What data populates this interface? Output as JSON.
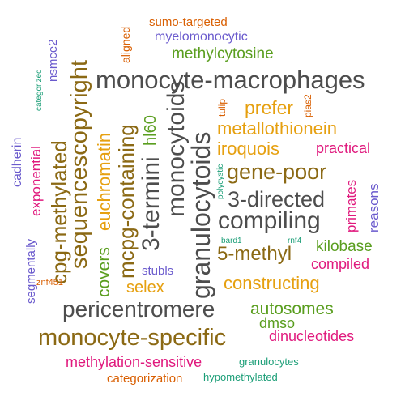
{
  "cloud": {
    "words": [
      {
        "text": "monocyte-macrophages",
        "color": "#4d4d4d"
      },
      {
        "text": "pericentromere",
        "color": "#4d4d4d"
      },
      {
        "text": "compiling",
        "color": "#4d4d4d"
      },
      {
        "text": "3-directed",
        "color": "#4d4d4d"
      },
      {
        "text": "granulocytoids",
        "color": "#4d4d4d"
      },
      {
        "text": "monocytoids",
        "color": "#4d4d4d"
      },
      {
        "text": "3-termini",
        "color": "#4d4d4d"
      },
      {
        "text": "monocyte-specific",
        "color": "#8b6914"
      },
      {
        "text": "gene-poor",
        "color": "#8b6914"
      },
      {
        "text": "5-methyl",
        "color": "#8b6914"
      },
      {
        "text": "sequencescopyright",
        "color": "#8b6914"
      },
      {
        "text": "cpg-methylated",
        "color": "#8b6914"
      },
      {
        "text": "mcpg-containing",
        "color": "#8b6914"
      },
      {
        "text": "constructing",
        "color": "#e6a010"
      },
      {
        "text": "iroquois",
        "color": "#e6a010"
      },
      {
        "text": "metallothionein",
        "color": "#e6a010"
      },
      {
        "text": "prefer",
        "color": "#e6a010"
      },
      {
        "text": "selex",
        "color": "#e6a010"
      },
      {
        "text": "euchromatin",
        "color": "#e6a010"
      },
      {
        "text": "autosomes",
        "color": "#5a9e1f"
      },
      {
        "text": "methylcytosine",
        "color": "#5a9e1f"
      },
      {
        "text": "kilobase",
        "color": "#5a9e1f"
      },
      {
        "text": "covers",
        "color": "#5a9e1f"
      },
      {
        "text": "hl60",
        "color": "#5a9e1f"
      },
      {
        "text": "dmso",
        "color": "#5a9e1f"
      },
      {
        "text": "methylation-sensitive",
        "color": "#e0197d"
      },
      {
        "text": "dinucleotides",
        "color": "#e0197d"
      },
      {
        "text": "compiled",
        "color": "#e0197d"
      },
      {
        "text": "practical",
        "color": "#e0197d"
      },
      {
        "text": "primates",
        "color": "#e0197d"
      },
      {
        "text": "exponential",
        "color": "#e0197d"
      },
      {
        "text": "myelomonocytic",
        "color": "#6a5acd"
      },
      {
        "text": "stubls",
        "color": "#6a5acd"
      },
      {
        "text": "reasons",
        "color": "#6a5acd"
      },
      {
        "text": "nsmce2",
        "color": "#6a5acd"
      },
      {
        "text": "cadherin",
        "color": "#6a5acd"
      },
      {
        "text": "segmentally",
        "color": "#6a5acd"
      },
      {
        "text": "categorization",
        "color": "#d95f02"
      },
      {
        "text": "sumo-targeted",
        "color": "#d95f02"
      },
      {
        "text": "aligned",
        "color": "#d95f02"
      },
      {
        "text": "tulip",
        "color": "#d95f02"
      },
      {
        "text": "pias2",
        "color": "#d95f02"
      },
      {
        "text": "znf451",
        "color": "#d95f02"
      },
      {
        "text": "granulocytes",
        "color": "#1b9e77"
      },
      {
        "text": "hypomethylated",
        "color": "#1b9e77"
      },
      {
        "text": "categorized",
        "color": "#1b9e77"
      },
      {
        "text": "polycystic",
        "color": "#1b9e77"
      },
      {
        "text": "bard1",
        "color": "#1b9e77"
      },
      {
        "text": "rnf4",
        "color": "#1b9e77"
      }
    ]
  }
}
